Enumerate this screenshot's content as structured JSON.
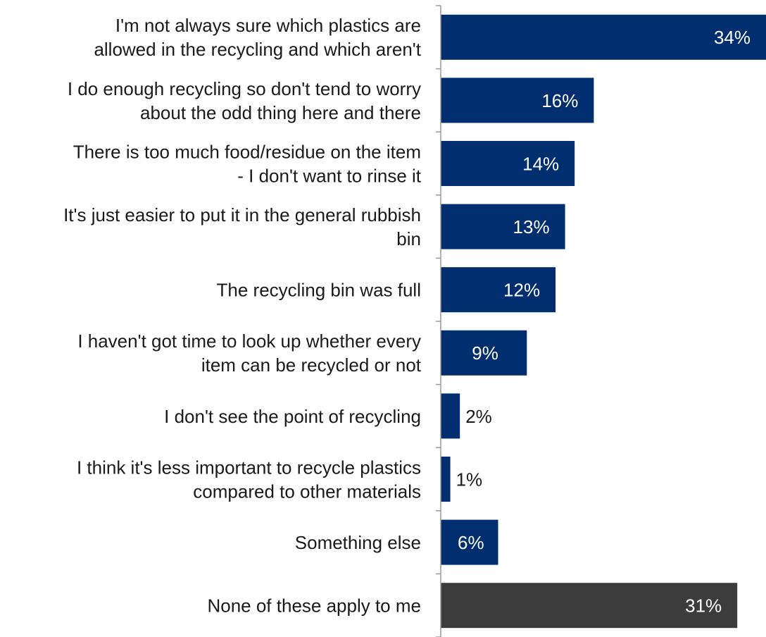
{
  "chart_data": {
    "type": "bar",
    "orientation": "horizontal",
    "categories": [
      [
        "I'm not always sure which plastics are",
        "allowed in the recycling and which aren't"
      ],
      [
        "I do enough recycling so don't tend to worry",
        "about the odd thing here and there"
      ],
      [
        "There is too much food/residue on the item",
        "- I don't want to rinse it"
      ],
      [
        "It's just easier to put it in the general rubbish",
        "bin"
      ],
      [
        "The recycling bin was full"
      ],
      [
        "I haven't got time to look up whether every",
        "item can be recycled or not"
      ],
      [
        "I don't see the point of recycling"
      ],
      [
        "I think it's less important to recycle plastics",
        "compared to other materials"
      ],
      [
        "Something else"
      ],
      [
        "None of these apply to me"
      ]
    ],
    "values": [
      34,
      16,
      14,
      13,
      12,
      9,
      2,
      1,
      6,
      31
    ],
    "value_labels": [
      "34%",
      "16%",
      "14%",
      "13%",
      "12%",
      "9%",
      "2%",
      "1%",
      "6%",
      "31%"
    ],
    "colors": [
      "#002e6e",
      "#002e6e",
      "#002e6e",
      "#002e6e",
      "#002e6e",
      "#002e6e",
      "#002e6e",
      "#002e6e",
      "#002e6e",
      "#3c3c3c"
    ],
    "xlim": [
      0,
      34
    ],
    "grid": false,
    "legend": "none"
  }
}
